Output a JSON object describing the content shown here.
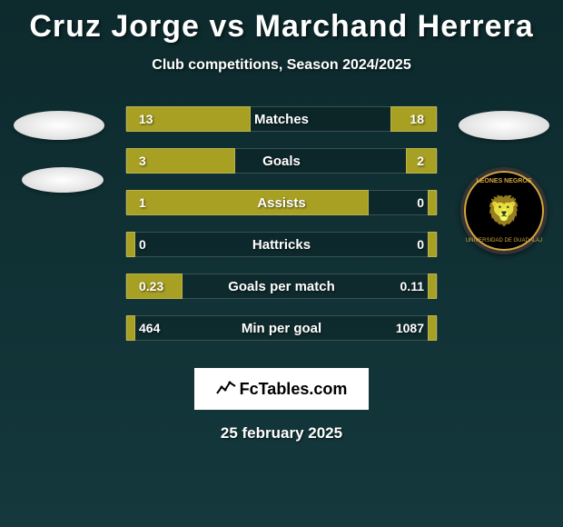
{
  "title": "Cruz Jorge vs Marchand Herrera",
  "subtitle": "Club competitions, Season 2024/2025",
  "date": "25 february 2025",
  "branding": {
    "site": "FcTables.com"
  },
  "colors": {
    "bar_fill": "#a8a023",
    "background_top": "#0d2a2d",
    "background_bottom": "#14383c",
    "border": "#3a5055"
  },
  "right_badge": {
    "name": "LEONES NEGROS",
    "subtext": "UNIVERSIDAD DE GUADALAJ"
  },
  "stats": [
    {
      "label": "Matches",
      "left_value": "13",
      "right_value": "18",
      "left_bar_pct": 40,
      "right_bar_pct": 15
    },
    {
      "label": "Goals",
      "left_value": "3",
      "right_value": "2",
      "left_bar_pct": 35,
      "right_bar_pct": 10
    },
    {
      "label": "Assists",
      "left_value": "1",
      "right_value": "0",
      "left_bar_pct": 78,
      "right_bar_pct": 3
    },
    {
      "label": "Hattricks",
      "left_value": "0",
      "right_value": "0",
      "left_bar_pct": 3,
      "right_bar_pct": 3
    },
    {
      "label": "Goals per match",
      "left_value": "0.23",
      "right_value": "0.11",
      "left_bar_pct": 18,
      "right_bar_pct": 3
    },
    {
      "label": "Min per goal",
      "left_value": "464",
      "right_value": "1087",
      "left_bar_pct": 3,
      "right_bar_pct": 3
    }
  ]
}
